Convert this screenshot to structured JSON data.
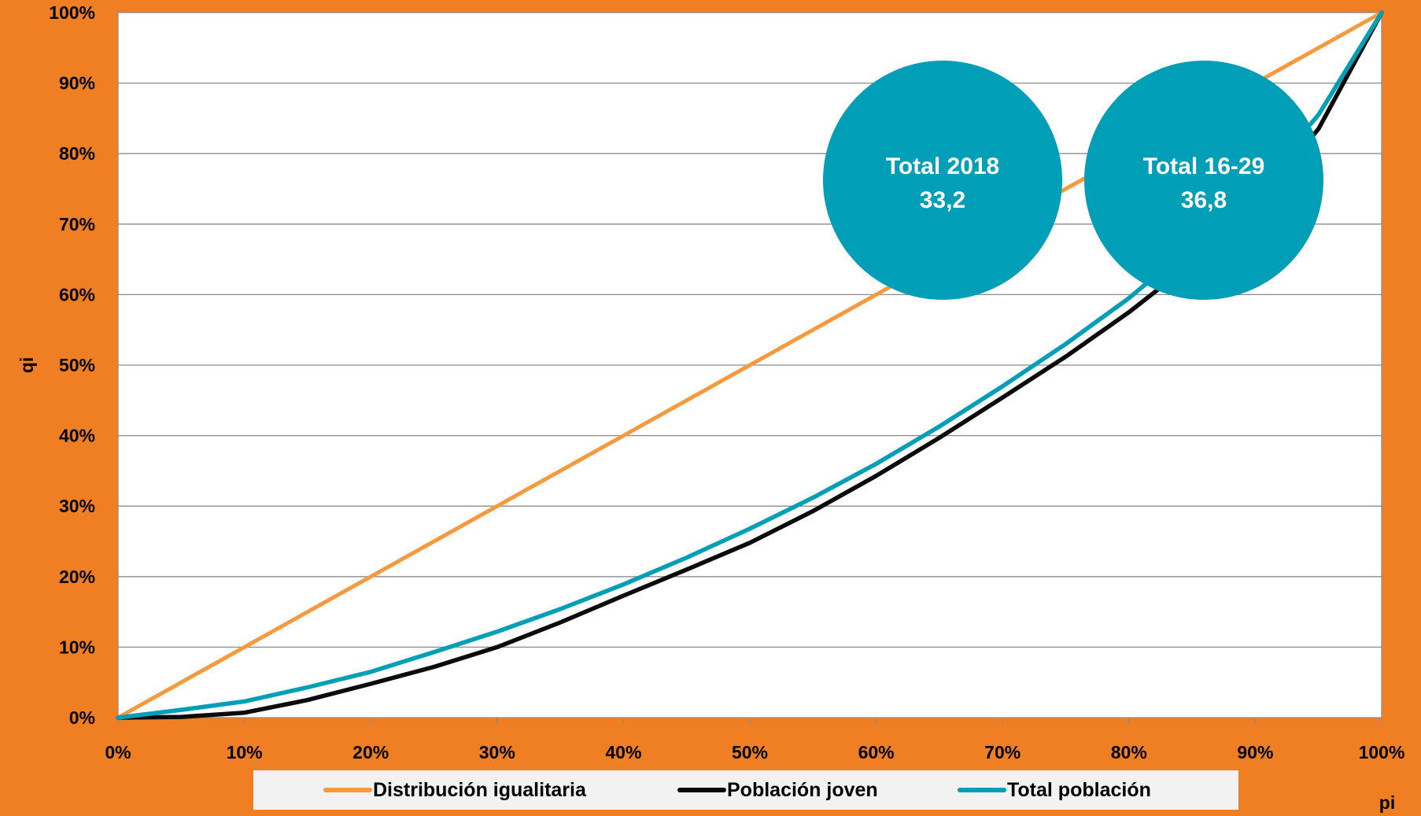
{
  "chart_data": {
    "type": "line",
    "xlabel": "pi",
    "ylabel": "qi",
    "xlim": [
      0,
      100
    ],
    "ylim": [
      0,
      100
    ],
    "x_ticks": [
      "0%",
      "10%",
      "20%",
      "30%",
      "40%",
      "50%",
      "60%",
      "70%",
      "80%",
      "90%",
      "100%"
    ],
    "y_ticks": [
      "0%",
      "10%",
      "20%",
      "30%",
      "40%",
      "50%",
      "60%",
      "70%",
      "80%",
      "90%",
      "100%"
    ],
    "grid": "horizontal",
    "legend_position": "bottom",
    "series": [
      {
        "name": "Distribución igualitaria",
        "color": "#F79A3E",
        "x": [
          0,
          100
        ],
        "values": [
          0,
          100
        ]
      },
      {
        "name": "Población joven",
        "color": "#0B0B0B",
        "x": [
          0,
          5,
          10,
          15,
          20,
          25,
          30,
          35,
          40,
          45,
          50,
          55,
          60,
          65,
          70,
          75,
          80,
          85,
          90,
          95,
          100
        ],
        "values": [
          0,
          0.1,
          0.7,
          2.5,
          4.8,
          7.2,
          10,
          13.5,
          17.3,
          21,
          24.8,
          29.3,
          34.3,
          39.7,
          45.4,
          51.2,
          57.5,
          64.5,
          72.7,
          83.5,
          100
        ]
      },
      {
        "name": "Total población",
        "color": "#009EB7",
        "x": [
          0,
          5,
          10,
          15,
          20,
          25,
          30,
          35,
          40,
          45,
          50,
          55,
          60,
          65,
          70,
          75,
          80,
          85,
          90,
          95,
          100
        ],
        "values": [
          0,
          1.1,
          2.3,
          4.3,
          6.5,
          9.3,
          12.2,
          15.4,
          18.9,
          22.7,
          26.8,
          31.2,
          36,
          41.3,
          47,
          53,
          59.5,
          67,
          75,
          85.5,
          100
        ]
      }
    ],
    "annotations": [
      {
        "line1": "Total 2018",
        "line2": "33,2",
        "color": "#009EB7"
      },
      {
        "line1": "Total 16-29",
        "line2": "36,8",
        "color": "#009EB7"
      }
    ]
  }
}
